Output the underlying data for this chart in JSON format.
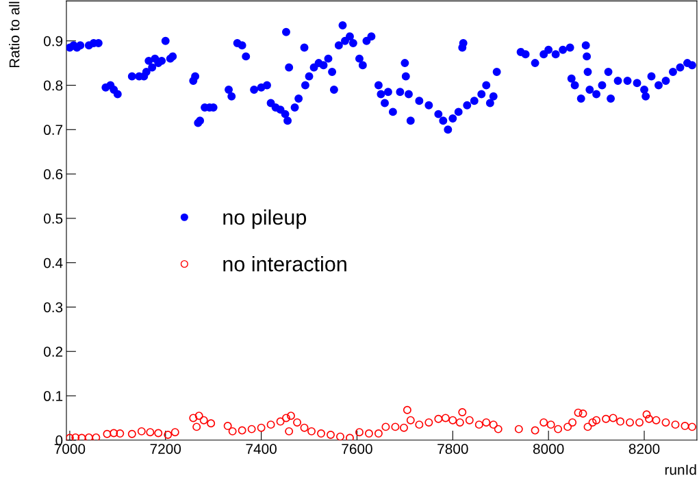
{
  "chart_data": {
    "type": "scatter",
    "xlabel": "runId",
    "ylabel": "Ratio to all",
    "xlim": [
      6993,
      8310
    ],
    "ylim": [
      0,
      0.99
    ],
    "xticks": [
      7000,
      7200,
      7400,
      7600,
      7800,
      8000,
      8200
    ],
    "yticks": [
      0,
      0.1,
      0.2,
      0.3,
      0.4,
      0.5,
      0.6,
      0.7,
      0.8,
      0.9
    ],
    "grid": false,
    "legend": "center",
    "series": [
      {
        "name": "no pileup",
        "color": "#0000ff",
        "marker": "circle",
        "x": [
          7000,
          7008,
          7015,
          7022,
          7040,
          7050,
          7060,
          7075,
          7085,
          7092,
          7100,
          7130,
          7145,
          7155,
          7160,
          7165,
          7172,
          7178,
          7185,
          7192,
          7200,
          7210,
          7215,
          7258,
          7262,
          7268,
          7272,
          7282,
          7292,
          7300,
          7332,
          7338,
          7350,
          7360,
          7368,
          7385,
          7400,
          7412,
          7420,
          7430,
          7440,
          7450,
          7455,
          7452,
          7458,
          7470,
          7478,
          7490,
          7492,
          7500,
          7510,
          7520,
          7530,
          7540,
          7548,
          7552,
          7562,
          7570,
          7575,
          7585,
          7592,
          7605,
          7612,
          7620,
          7630,
          7645,
          7650,
          7658,
          7665,
          7675,
          7690,
          7700,
          7702,
          7708,
          7712,
          7730,
          7750,
          7770,
          7780,
          7790,
          7800,
          7812,
          7820,
          7822,
          7830,
          7845,
          7860,
          7870,
          7878,
          7885,
          7892,
          7942,
          7952,
          7972,
          7990,
          8000,
          8015,
          8030,
          8045,
          8048,
          8055,
          8068,
          8078,
          8080,
          8082,
          8086,
          8100,
          8112,
          8125,
          8130,
          8145,
          8165,
          8185,
          8200,
          8203,
          8215,
          8230,
          8245,
          8260,
          8275,
          8290,
          8300
        ],
        "values": [
          0.885,
          0.89,
          0.885,
          0.89,
          0.89,
          0.895,
          0.895,
          0.795,
          0.8,
          0.79,
          0.78,
          0.82,
          0.82,
          0.82,
          0.83,
          0.855,
          0.84,
          0.86,
          0.85,
          0.855,
          0.9,
          0.86,
          0.865,
          0.81,
          0.82,
          0.715,
          0.72,
          0.75,
          0.75,
          0.75,
          0.79,
          0.775,
          0.895,
          0.89,
          0.865,
          0.79,
          0.795,
          0.8,
          0.76,
          0.75,
          0.745,
          0.735,
          0.72,
          0.92,
          0.84,
          0.75,
          0.77,
          0.885,
          0.8,
          0.82,
          0.84,
          0.85,
          0.845,
          0.86,
          0.83,
          0.79,
          0.89,
          0.935,
          0.9,
          0.91,
          0.895,
          0.86,
          0.845,
          0.9,
          0.91,
          0.8,
          0.78,
          0.76,
          0.785,
          0.74,
          0.785,
          0.85,
          0.82,
          0.78,
          0.72,
          0.765,
          0.755,
          0.735,
          0.72,
          0.7,
          0.725,
          0.74,
          0.885,
          0.895,
          0.755,
          0.765,
          0.78,
          0.8,
          0.76,
          0.775,
          0.83,
          0.875,
          0.87,
          0.85,
          0.87,
          0.88,
          0.87,
          0.88,
          0.885,
          0.815,
          0.8,
          0.77,
          0.89,
          0.865,
          0.83,
          0.79,
          0.78,
          0.8,
          0.83,
          0.77,
          0.81,
          0.81,
          0.805,
          0.79,
          0.775,
          0.82,
          0.8,
          0.81,
          0.83,
          0.84,
          0.85,
          0.845
        ]
      },
      {
        "name": "no interaction",
        "color": "#ff0000",
        "marker": "circle",
        "x": [
          7000,
          7012,
          7025,
          7040,
          7055,
          7078,
          7092,
          7105,
          7130,
          7150,
          7168,
          7185,
          7205,
          7220,
          7258,
          7265,
          7270,
          7280,
          7295,
          7330,
          7340,
          7360,
          7380,
          7400,
          7420,
          7440,
          7452,
          7458,
          7462,
          7475,
          7490,
          7505,
          7525,
          7545,
          7565,
          7585,
          7605,
          7625,
          7645,
          7660,
          7680,
          7698,
          7705,
          7712,
          7730,
          7750,
          7770,
          7785,
          7800,
          7815,
          7820,
          7835,
          7855,
          7870,
          7885,
          7895,
          7938,
          7972,
          7990,
          8005,
          8020,
          8040,
          8050,
          8062,
          8072,
          8082,
          8092,
          8100,
          8120,
          8135,
          8150,
          8170,
          8190,
          8205,
          8210,
          8225,
          8245,
          8265,
          8285,
          8300
        ],
        "values": [
          0.005,
          0.006,
          0.005,
          0.006,
          0.006,
          0.014,
          0.016,
          0.015,
          0.014,
          0.02,
          0.018,
          0.016,
          0.012,
          0.018,
          0.05,
          0.03,
          0.055,
          0.045,
          0.038,
          0.032,
          0.02,
          0.022,
          0.025,
          0.028,
          0.035,
          0.042,
          0.05,
          0.02,
          0.055,
          0.04,
          0.028,
          0.02,
          0.015,
          0.012,
          0.008,
          0.005,
          0.018,
          0.015,
          0.015,
          0.03,
          0.03,
          0.028,
          0.068,
          0.045,
          0.035,
          0.04,
          0.048,
          0.05,
          0.045,
          0.04,
          0.063,
          0.045,
          0.035,
          0.04,
          0.035,
          0.025,
          0.025,
          0.022,
          0.04,
          0.035,
          0.025,
          0.03,
          0.04,
          0.062,
          0.06,
          0.03,
          0.04,
          0.045,
          0.048,
          0.05,
          0.042,
          0.04,
          0.04,
          0.058,
          0.048,
          0.045,
          0.04,
          0.035,
          0.032,
          0.03
        ]
      }
    ]
  }
}
